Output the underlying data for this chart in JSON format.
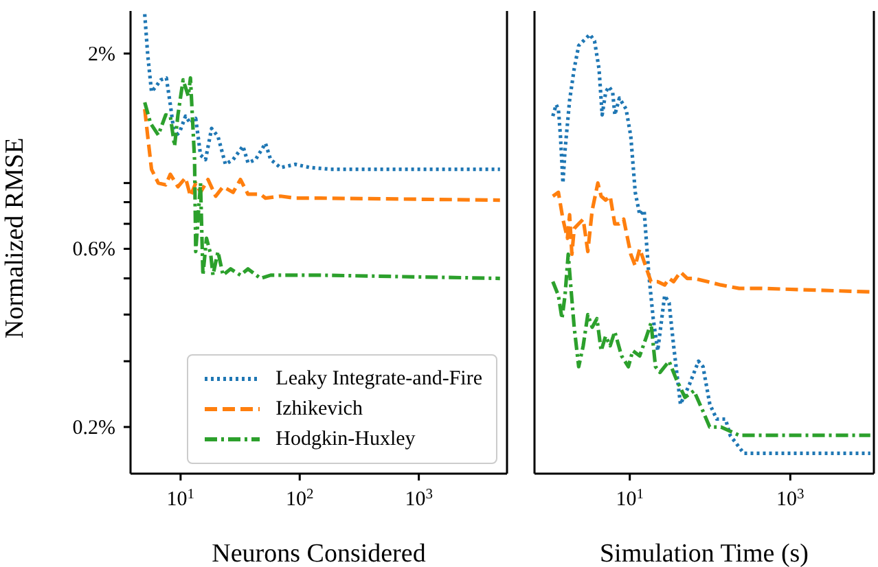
{
  "chart_data": [
    {
      "type": "line",
      "ylabel": "Normalized RMSE",
      "xlabel": "Neurons Considered",
      "log": "xy",
      "legend": "bottom right",
      "xlim": [
        3.8,
        5500
      ],
      "xticks": [
        {
          "value": 10,
          "label": "10$^{1}$"
        },
        {
          "value": 100,
          "label": "10$^{2}$"
        },
        {
          "value": 1000,
          "label": "10$^{3}$"
        }
      ],
      "ylim": [
        0.15,
        2.6
      ],
      "yticks": [
        {
          "value": 2,
          "label": "2%"
        },
        {
          "value": 0.9,
          "label": null
        },
        {
          "value": 0.8,
          "label": null
        },
        {
          "value": 0.7,
          "label": null
        },
        {
          "value": 0.6,
          "label": "0.6%"
        },
        {
          "value": 0.5,
          "label": null
        },
        {
          "value": 0.4,
          "label": null
        },
        {
          "value": 0.3,
          "label": null
        },
        {
          "value": 0.2,
          "label": "0.2%"
        }
      ],
      "series": [
        {
          "name": "Leaky Integrate-and-Fire",
          "color": "#1f77b4",
          "line_style": "dotted",
          "x": [
            5,
            5.3,
            5.7,
            6.2,
            6.8,
            7.6,
            8.2,
            8.9,
            9.8,
            11,
            12.1,
            13.4,
            14.7,
            16.2,
            18.2,
            20.6,
            23.8,
            27.6,
            33.4,
            36.8,
            42.6,
            51.6,
            57,
            69,
            92,
            123,
            181,
            392,
            1025,
            4800
          ],
          "values": [
            2.55,
            1.98,
            1.58,
            1.63,
            1.7,
            1.72,
            1.46,
            1.2,
            1.23,
            1.36,
            1.3,
            1.34,
            1.07,
            1.04,
            1.26,
            1.2,
            1.01,
            1.04,
            1.13,
            1.02,
            1.04,
            1.15,
            1.04,
            0.99,
            1.01,
            0.99,
            0.98,
            0.98,
            0.98,
            0.98
          ]
        },
        {
          "name": "Izhikevich",
          "color": "#ff7f0e",
          "line_style": "dashed",
          "x": [
            5,
            5.3,
            5.7,
            6.5,
            7.5,
            8.2,
            9.5,
            11,
            12.1,
            13.4,
            14.7,
            17,
            19.7,
            22.7,
            27.6,
            31.8,
            36.8,
            46.9,
            51.6,
            69,
            92,
            149,
            4800
          ],
          "values": [
            1.42,
            1.2,
            0.98,
            0.9,
            0.89,
            0.95,
            0.88,
            0.93,
            0.83,
            0.9,
            0.85,
            0.92,
            0.83,
            0.88,
            0.85,
            0.92,
            0.84,
            0.84,
            0.82,
            0.83,
            0.82,
            0.82,
            0.81
          ]
        },
        {
          "name": "Hodgkin-Huxley",
          "color": "#2ca02c",
          "line_style": "dashdot",
          "x": [
            5,
            5.6,
            6.5,
            7.5,
            8.2,
            8.9,
            9.5,
            10.5,
            11.6,
            12.1,
            13.1,
            13.4,
            14.7,
            15.4,
            16.5,
            17.9,
            18.7,
            20.6,
            22.7,
            26.3,
            31.8,
            36.8,
            46.9,
            57,
            92,
            149,
            4800
          ],
          "values": [
            1.48,
            1.3,
            1.21,
            1.37,
            1.36,
            1.13,
            1.37,
            1.7,
            1.54,
            1.72,
            1.04,
            0.59,
            0.9,
            0.51,
            0.64,
            0.58,
            0.51,
            0.59,
            0.51,
            0.53,
            0.51,
            0.53,
            0.5,
            0.51,
            0.51,
            0.51,
            0.5
          ]
        }
      ]
    },
    {
      "type": "line",
      "xlabel": "Simulation Time (s)",
      "log": "xy",
      "tick_labels": "x",
      "xlim": [
        0.65,
        11000
      ],
      "xticks": [
        {
          "value": 10,
          "label": "10$^{1}$"
        },
        {
          "value": 1000,
          "label": "10$^{3}$"
        }
      ],
      "ylim": [
        0.15,
        2.6
      ],
      "series": [
        {
          "color": "#1f77b4",
          "line_style": "dotted",
          "x": [
            1.1,
            1.21,
            1.29,
            1.37,
            1.47,
            1.56,
            1.78,
            2.03,
            2.31,
            2.63,
            3.19,
            3.64,
            4.14,
            4.53,
            5.02,
            5.51,
            6.11,
            6.52,
            7.42,
            9,
            10.3,
            11.7,
            13.3,
            15.1,
            17.3,
            19.6,
            22.3,
            27.2,
            30.9,
            35.2,
            42.8,
            55.4,
            71.8,
            81.8,
            99.4,
            121,
            156,
            178,
            263,
            388,
            573,
            1094,
            9930
          ],
          "values": [
            1.36,
            1.46,
            1.42,
            1.2,
            0.9,
            1.1,
            1.5,
            1.82,
            2.1,
            2.16,
            2.25,
            2.16,
            1.82,
            1.37,
            1.58,
            1.63,
            1.58,
            1.37,
            1.52,
            1.42,
            1.2,
            0.85,
            0.74,
            0.76,
            0.51,
            0.39,
            0.32,
            0.45,
            0.43,
            0.33,
            0.23,
            0.26,
            0.3,
            0.29,
            0.23,
            0.21,
            0.21,
            0.19,
            0.17,
            0.17,
            0.17,
            0.17,
            0.17
          ]
        },
        {
          "color": "#ff7f0e",
          "line_style": "dashed",
          "x": [
            1.1,
            1.29,
            1.47,
            1.67,
            1.78,
            1.9,
            2.03,
            2.31,
            2.63,
            3,
            3.4,
            4,
            4.4,
            5,
            5.7,
            6.5,
            7.4,
            8.4,
            10.3,
            11.7,
            13.3,
            16.2,
            18.4,
            22.3,
            27.2,
            30.9,
            35.2,
            42.8,
            52,
            63,
            93,
            137,
            231,
            442,
            9930
          ],
          "values": [
            0.83,
            0.85,
            0.72,
            0.64,
            0.74,
            0.58,
            0.68,
            0.7,
            0.72,
            0.59,
            0.76,
            0.9,
            0.83,
            0.81,
            0.83,
            0.7,
            0.7,
            0.72,
            0.58,
            0.54,
            0.6,
            0.53,
            0.49,
            0.49,
            0.48,
            0.5,
            0.49,
            0.52,
            0.5,
            0.5,
            0.49,
            0.48,
            0.47,
            0.47,
            0.46
          ]
        },
        {
          "color": "#2ca02c",
          "line_style": "dashdot",
          "x": [
            1.1,
            1.29,
            1.43,
            1.56,
            1.71,
            1.85,
            2.03,
            2.31,
            2.63,
            3,
            3.4,
            3.9,
            4.4,
            5,
            5.7,
            6.5,
            7.9,
            9.6,
            10.9,
            13.3,
            16.2,
            18.4,
            20.9,
            23.8,
            30.9,
            37.6,
            48.7,
            63,
            82,
            99,
            137,
            231,
            442,
            9930
          ],
          "values": [
            0.49,
            0.45,
            0.39,
            0.45,
            0.58,
            0.47,
            0.37,
            0.29,
            0.33,
            0.4,
            0.37,
            0.39,
            0.32,
            0.35,
            0.33,
            0.36,
            0.31,
            0.29,
            0.32,
            0.31,
            0.35,
            0.38,
            0.29,
            0.28,
            0.3,
            0.27,
            0.24,
            0.25,
            0.22,
            0.2,
            0.2,
            0.19,
            0.19,
            0.19
          ]
        }
      ]
    }
  ]
}
